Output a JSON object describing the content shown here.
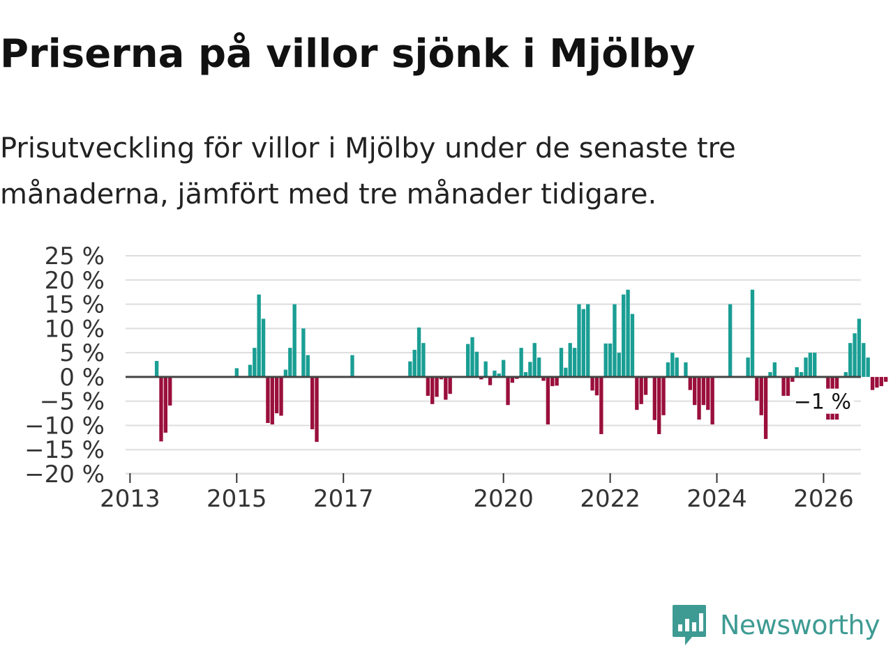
{
  "title": "Priserna på villor sjönk i Mjölby",
  "subtitle": "Prisutveckling för villor i Mjölby under de senaste tre månaderna, jämfört med tre månader tidigare.",
  "brand": {
    "name": "Newsworthy",
    "color": "#3e9b93",
    "icon": "chart-bubble-icon"
  },
  "colors": {
    "positive": "#1a9e94",
    "negative": "#9a0f3c",
    "zero_line": "#444444",
    "grid": "#dddddd"
  },
  "chart_data": {
    "type": "bar",
    "title": "Priserna på villor sjönk i Mjölby",
    "ylabel": "",
    "xlabel": "",
    "ylim": [
      -20,
      25
    ],
    "y_ticks": [
      25,
      20,
      15,
      10,
      5,
      0,
      -5,
      -10,
      -15,
      -20
    ],
    "y_tick_labels": [
      "25 %",
      "20 %",
      "15 %",
      "10 %",
      "5 %",
      "0 %",
      "−5 %",
      "−10 %",
      "−15 %",
      "−20 %"
    ],
    "x_ticks": [
      2013,
      2015,
      2017,
      2020,
      2022,
      2024,
      2026
    ],
    "x_tick_labels": [
      "2013",
      "2015",
      "2017",
      "2020",
      "2022",
      "2024",
      "2026"
    ],
    "x_range": [
      2012.9167,
      2026.7
    ],
    "grid": true,
    "last_value_label": "−1 %",
    "series": [
      {
        "name": "Prisutveckling",
        "start": "2013-01",
        "frequency": "monthly",
        "values": [
          null,
          null,
          null,
          null,
          null,
          null,
          3.3,
          -13.3,
          -11.5,
          -5.9,
          null,
          null,
          null,
          null,
          null,
          null,
          null,
          null,
          null,
          null,
          null,
          null,
          null,
          null,
          1.8,
          null,
          null,
          2.5,
          6,
          17,
          12,
          -9.5,
          -9.8,
          -7.5,
          -8,
          1.5,
          6,
          15,
          null,
          10,
          4.5,
          -10.8,
          -13.4,
          null,
          null,
          null,
          null,
          null,
          null,
          null,
          4.5,
          null,
          null,
          null,
          null,
          null,
          null,
          null,
          null,
          null,
          null,
          null,
          null,
          3.2,
          5.6,
          10.2,
          7,
          -3.9,
          -5.6,
          -4.1,
          -0.5,
          -4.7,
          -3.5,
          null,
          null,
          null,
          6.8,
          8.2,
          5.2,
          -0.5,
          3.2,
          -1.7,
          1.3,
          0.7,
          3.5,
          -5.8,
          -1.2,
          -0.4,
          6,
          1,
          3.1,
          7,
          4,
          -0.8,
          -9.8,
          -1.9,
          -1.8,
          6,
          1.9,
          7,
          6,
          15,
          14,
          15,
          -2.8,
          -3.8,
          -11.8,
          6.9,
          6.9,
          15,
          5,
          17,
          18,
          13,
          -6.8,
          -5.6,
          -3.7,
          null,
          -8.9,
          -11.8,
          -7.9,
          3,
          5,
          4,
          null,
          3,
          -2.7,
          -5.8,
          -8.8,
          -5.8,
          -6.8,
          -9.8,
          null,
          null,
          null,
          15,
          null,
          null,
          null,
          4,
          18,
          -4.9,
          -7.9,
          -12.8,
          1,
          3,
          null,
          -3.9,
          -3.9,
          -1,
          2,
          1,
          4,
          5,
          5,
          null,
          null,
          -8.8,
          -8.8,
          -8.8,
          null,
          1,
          7,
          9,
          12,
          7,
          4,
          -2.7,
          -2.2,
          -1.9,
          -1
        ]
      }
    ]
  }
}
